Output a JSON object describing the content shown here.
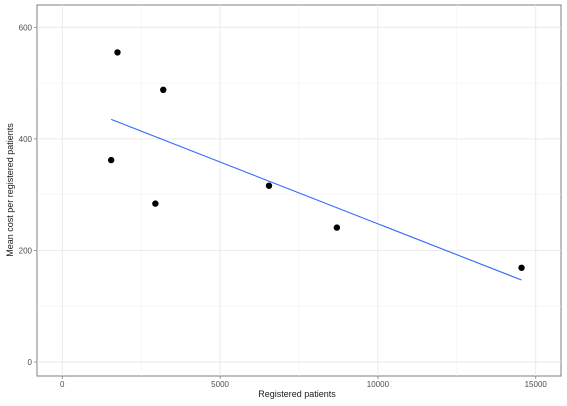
{
  "chart_data": {
    "type": "scatter",
    "title": "",
    "xlabel": "Registered patients",
    "ylabel": "Mean cost per registered patients",
    "xlim": [
      -800,
      15800
    ],
    "ylim": [
      -25,
      640
    ],
    "x_ticks": [
      0,
      5000,
      10000,
      15000
    ],
    "y_ticks": [
      0,
      200,
      400,
      600
    ],
    "grid": true,
    "points": [
      {
        "x": 1550,
        "y": 362
      },
      {
        "x": 1750,
        "y": 555
      },
      {
        "x": 2950,
        "y": 284
      },
      {
        "x": 3200,
        "y": 488
      },
      {
        "x": 6550,
        "y": 316
      },
      {
        "x": 8700,
        "y": 241
      },
      {
        "x": 14550,
        "y": 169
      }
    ],
    "fit_line": {
      "x": [
        1550,
        14550
      ],
      "y": [
        435,
        147
      ],
      "color": "#3366ff"
    },
    "point_color": "#000000"
  }
}
